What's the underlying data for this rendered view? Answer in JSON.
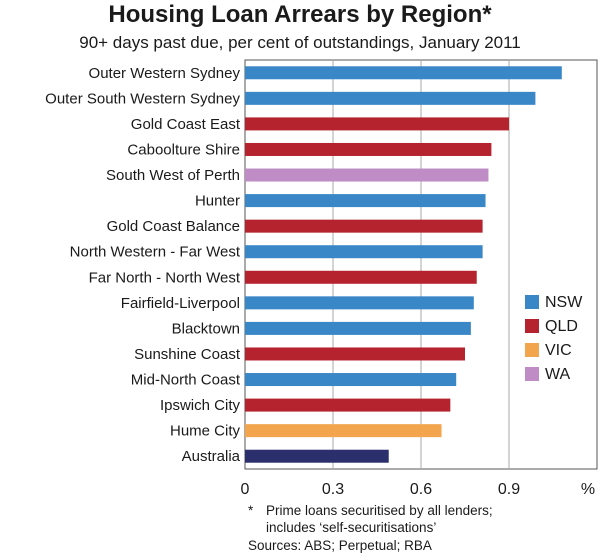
{
  "title": "Housing Loan Arrears by Region*",
  "subtitle": "90+ days past due, per cent of outstandings, January 2011",
  "footnote": {
    "marker": "*",
    "line1": "Prime loans securitised by all lenders;",
    "line2": "includes ‘self-securitisations’",
    "sources": "Sources: ABS; Perpetual; RBA"
  },
  "colors": {
    "NSW": "#3a87c8",
    "QLD": "#b5232f",
    "VIC": "#f2a54d",
    "WA": "#c08cc6",
    "Australia": "#2b2f6b"
  },
  "chart_data": {
    "type": "bar",
    "orientation": "horizontal",
    "categories": [
      "Outer Western Sydney",
      "Outer South Western Sydney",
      "Gold Coast East",
      "Caboolture Shire",
      "South West of Perth",
      "Hunter",
      "Gold Coast Balance",
      "North Western - Far West",
      "Far North - North West",
      "Fairfield-Liverpool",
      "Blacktown",
      "Sunshine Coast",
      "Mid-North Coast",
      "Ipswich City",
      "Hume City",
      "Australia"
    ],
    "values": [
      1.08,
      0.99,
      0.9,
      0.84,
      0.83,
      0.82,
      0.81,
      0.81,
      0.79,
      0.78,
      0.77,
      0.75,
      0.72,
      0.7,
      0.67,
      0.49
    ],
    "groups": [
      "NSW",
      "NSW",
      "QLD",
      "QLD",
      "WA",
      "NSW",
      "QLD",
      "NSW",
      "QLD",
      "NSW",
      "NSW",
      "QLD",
      "NSW",
      "QLD",
      "VIC",
      "Australia"
    ],
    "xlim": [
      0,
      1.2
    ],
    "xticks": [
      "0",
      "0.3",
      "0.6",
      "0.9"
    ],
    "xunit": "%",
    "grid": true,
    "legend": {
      "position": "right",
      "entries": [
        "NSW",
        "QLD",
        "VIC",
        "WA"
      ]
    }
  }
}
